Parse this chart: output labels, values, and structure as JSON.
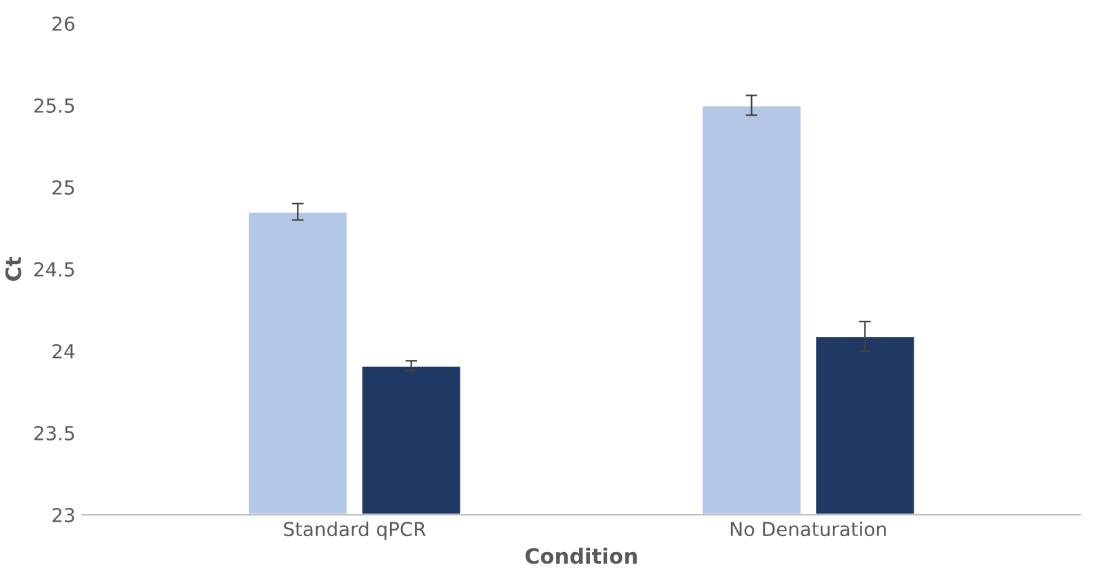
{
  "chart_data": {
    "type": "bar",
    "xlabel": "Condition",
    "ylabel": "Ct",
    "categories": [
      "Standard qPCR",
      "No Denaturation"
    ],
    "series": [
      {
        "color": "#b4c7e7",
        "values": [
          24.85,
          25.5
        ],
        "errors": [
          0.05,
          0.06
        ]
      },
      {
        "color": "#203864",
        "values": [
          23.91,
          24.09
        ],
        "errors": [
          0.03,
          0.09
        ]
      }
    ],
    "ylim": [
      23,
      26
    ],
    "yticks": [
      23,
      23.5,
      24,
      24.5,
      25,
      25.5,
      26
    ],
    "grid": false,
    "legend": false
  }
}
